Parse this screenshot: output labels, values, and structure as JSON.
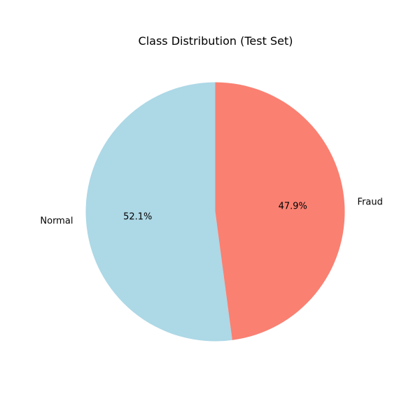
{
  "chart_data": {
    "type": "pie",
    "title": "Class Distribution (Test Set)",
    "slices": [
      {
        "label": "Normal",
        "value": 52.1,
        "pct_label": "52.1%",
        "color": "#add8e6"
      },
      {
        "label": "Fraud",
        "value": 47.9,
        "pct_label": "47.9%",
        "color": "#fa8072"
      }
    ],
    "start_angle_deg": 90,
    "direction": "counterclockwise",
    "legend": "none"
  }
}
